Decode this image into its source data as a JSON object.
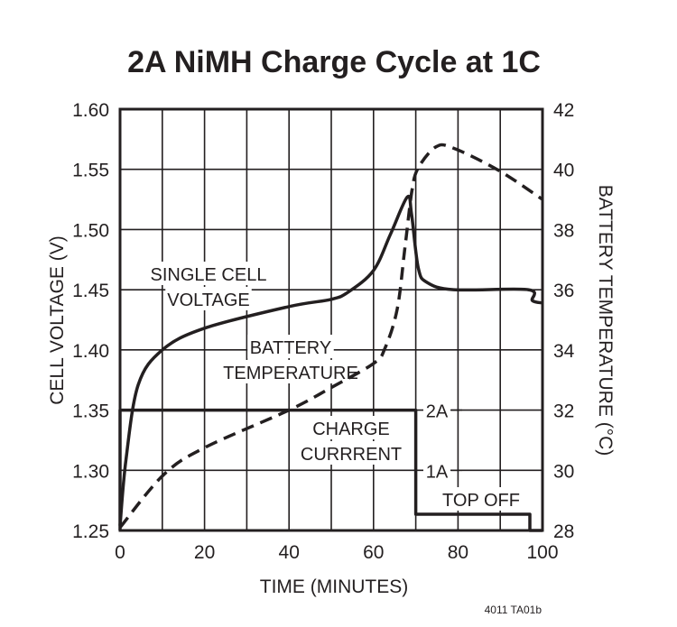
{
  "chart_data": {
    "type": "line",
    "title": "2A NiMH Charge Cycle at 1C",
    "xlabel": "TIME (MINUTES)",
    "ylabel": "CELL VOLTAGE (V)",
    "y2label": "BATTERY TEMPERATURE (°C)",
    "xlim": [
      0,
      100
    ],
    "ylim": [
      1.25,
      1.6
    ],
    "y2lim": [
      28,
      42
    ],
    "grid": true,
    "x_ticks": [
      "0",
      "20",
      "40",
      "60",
      "80",
      "100"
    ],
    "y_ticks": [
      "1.25",
      "1.30",
      "1.35",
      "1.40",
      "1.45",
      "1.50",
      "1.55",
      "1.60"
    ],
    "y2_ticks": [
      "28",
      "30",
      "32",
      "34",
      "36",
      "38",
      "40",
      "42"
    ],
    "current_ticks": [
      "2A",
      "1A"
    ],
    "footnote": "4011 TA01b",
    "series": [
      {
        "name": "SINGLE CELL VOLTAGE",
        "axis": "left",
        "style": "solid",
        "x": [
          0,
          1.4,
          4.3,
          10,
          20,
          40,
          50,
          54,
          60,
          64,
          68,
          69,
          70.6,
          72.7,
          79,
          96.6,
          97.6,
          100
        ],
        "y": [
          1.254,
          1.309,
          1.371,
          1.4,
          1.418,
          1.436,
          1.442,
          1.448,
          1.466,
          1.496,
          1.527,
          1.513,
          1.468,
          1.456,
          1.45,
          1.45,
          1.441,
          1.439
        ]
      },
      {
        "name": "BATTERY TEMPERATURE",
        "axis": "right",
        "style": "dashed",
        "x": [
          0,
          10.3,
          20,
          40,
          50,
          60,
          62.7,
          65.6,
          67.4,
          69.1,
          70.6,
          74.8,
          79,
          89.8,
          100
        ],
        "y": [
          28.1,
          29.85,
          30.75,
          32.0,
          32.75,
          33.55,
          34.05,
          35.35,
          37.35,
          39.3,
          40.05,
          40.75,
          40.7,
          39.95,
          39.0
        ]
      },
      {
        "name": "CHARGE CURRRENT",
        "axis": "current",
        "unit": "A",
        "style": "solid",
        "x": [
          0,
          0,
          70,
          70,
          97,
          97,
          100
        ],
        "y": [
          0,
          2,
          2,
          0.27,
          0.27,
          0,
          0
        ]
      }
    ],
    "annotations": [
      {
        "lines": [
          "SINGLE CELL",
          "VOLTAGE"
        ]
      },
      {
        "lines": [
          "BATTERY",
          "TEMPERATURE"
        ]
      },
      {
        "lines": [
          "CHARGE",
          "CURRRENT"
        ]
      },
      {
        "lines": [
          "TOP OFF"
        ]
      }
    ]
  }
}
